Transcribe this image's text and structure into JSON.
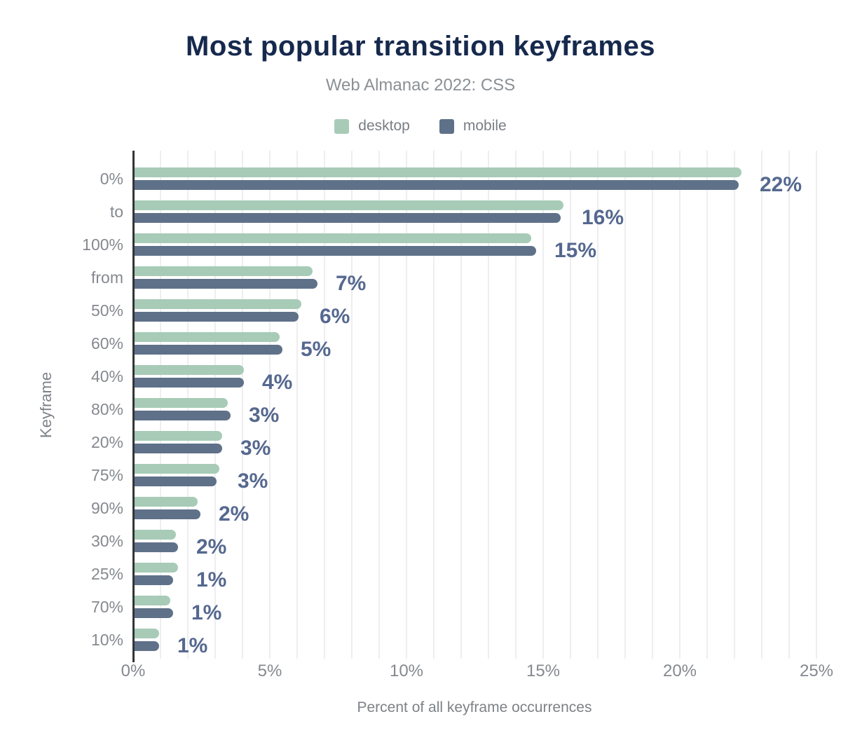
{
  "header": {
    "title": "Most popular transition keyframes",
    "subtitle": "Web Almanac 2022: CSS"
  },
  "legend": {
    "items": [
      {
        "label": "desktop",
        "color": "#a7cbb7"
      },
      {
        "label": "mobile",
        "color": "#5f7189"
      }
    ]
  },
  "colors": {
    "title": "#16294d",
    "subtitle": "#8b9096",
    "desktop_bar": "#a7cbb7",
    "mobile_bar": "#5f7189",
    "value_label": "#55688f",
    "tick_label": "#85898f",
    "axis_title": "#7d8288",
    "axis_line": "#333436",
    "grid_line": "#eeeef1",
    "background": "#ffffff"
  },
  "chart_data": {
    "type": "bar",
    "orientation": "horizontal",
    "title": "Most popular transition keyframes",
    "subtitle": "Web Almanac 2022: CSS",
    "categories": [
      "0%",
      "to",
      "100%",
      "from",
      "50%",
      "60%",
      "40%",
      "80%",
      "20%",
      "75%",
      "90%",
      "30%",
      "25%",
      "70%",
      "10%"
    ],
    "series": [
      {
        "name": "desktop",
        "color": "#a7cbb7",
        "values": [
          22.2,
          15.7,
          14.5,
          6.5,
          6.1,
          5.3,
          4.0,
          3.4,
          3.2,
          3.1,
          2.3,
          1.5,
          1.6,
          1.3,
          0.9
        ]
      },
      {
        "name": "mobile",
        "color": "#5f7189",
        "values": [
          22.1,
          15.6,
          14.7,
          6.7,
          6.0,
          5.4,
          4.0,
          3.5,
          3.2,
          3.0,
          2.4,
          1.6,
          1.4,
          1.4,
          0.9
        ]
      }
    ],
    "bar_labels": [
      "22%",
      "16%",
      "15%",
      "7%",
      "6%",
      "5%",
      "4%",
      "3%",
      "3%",
      "3%",
      "2%",
      "2%",
      "1%",
      "1%",
      "1%"
    ],
    "xlabel": "Percent of all keyframe occurrences",
    "ylabel": "Keyframe",
    "x_ticks": [
      "0%",
      "5%",
      "10%",
      "15%",
      "20%",
      "25%"
    ],
    "xlim": [
      0,
      25
    ],
    "grid": "vertical, minor step 1%, major ticks every 5%",
    "legend_position": "top"
  }
}
